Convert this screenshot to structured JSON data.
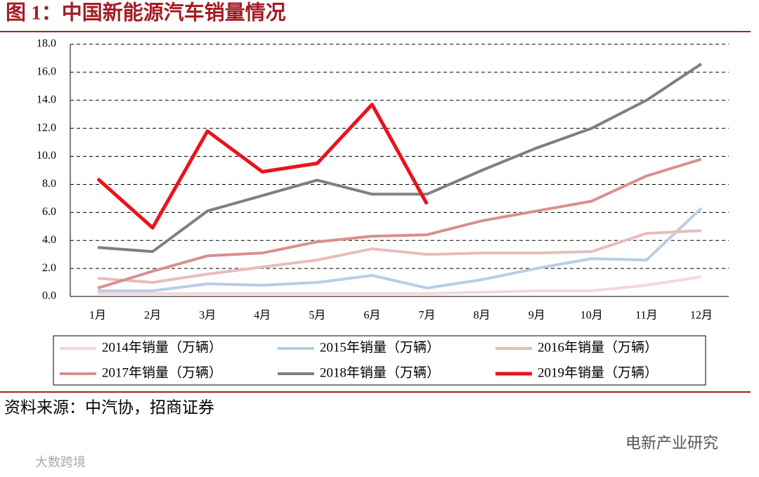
{
  "chart_data": {
    "type": "line",
    "title": "图 1：中国新能源汽车销量情况",
    "categories": [
      "1月",
      "2月",
      "3月",
      "4月",
      "5月",
      "6月",
      "7月",
      "8月",
      "9月",
      "10月",
      "11月",
      "12月"
    ],
    "series": [
      {
        "name": "2014年销量（万辆）",
        "color": "#f2d9d9",
        "values": [
          0.2,
          0.2,
          0.2,
          0.2,
          0.2,
          0.2,
          0.2,
          0.3,
          0.4,
          0.4,
          0.8,
          1.4
        ]
      },
      {
        "name": "2015年销量（万辆）",
        "color": "#b9cde6",
        "values": [
          0.4,
          0.4,
          0.9,
          0.8,
          1.0,
          1.5,
          0.6,
          1.2,
          2.0,
          2.7,
          2.6,
          6.3
        ]
      },
      {
        "name": "2016年销量（万辆）",
        "color": "#e8bcbb",
        "values": [
          1.3,
          1.0,
          1.6,
          2.1,
          2.6,
          3.4,
          3.0,
          3.1,
          3.1,
          3.2,
          4.5,
          4.7
        ]
      },
      {
        "name": "2017年销量（万辆）",
        "color": "#d8908e",
        "values": [
          0.6,
          1.8,
          2.9,
          3.1,
          3.9,
          4.3,
          4.4,
          5.4,
          6.1,
          6.8,
          8.6,
          9.8
        ]
      },
      {
        "name": "2018年销量（万辆）",
        "color": "#7f7f7f",
        "values": [
          3.5,
          3.2,
          6.1,
          7.2,
          8.3,
          7.3,
          7.3,
          9.0,
          10.6,
          12.0,
          14.0,
          16.6
        ]
      },
      {
        "name": "2019年销量（万辆）",
        "color": "#e8141c",
        "values": [
          8.4,
          4.9,
          11.8,
          8.9,
          9.5,
          13.7,
          6.6,
          null,
          null,
          null,
          null,
          null
        ]
      }
    ],
    "ylim": [
      0,
      18
    ],
    "yticks": [
      {
        "value": 0,
        "label": "0.0"
      },
      {
        "value": 2,
        "label": "2.0"
      },
      {
        "value": 4,
        "label": "4.0"
      },
      {
        "value": 6,
        "label": "6.0"
      },
      {
        "value": 8,
        "label": "8.0"
      },
      {
        "value": 10,
        "label": "10.0"
      },
      {
        "value": 12,
        "label": "12.0"
      },
      {
        "value": 14,
        "label": "14.0"
      },
      {
        "value": 16,
        "label": "16.0"
      },
      {
        "value": 18,
        "label": "18.0"
      }
    ],
    "grid": true,
    "legend": "bottom",
    "source": "资料来源：中汽协，招商证券",
    "watermarks": [
      "电新产业研究",
      "大数跨境"
    ]
  }
}
